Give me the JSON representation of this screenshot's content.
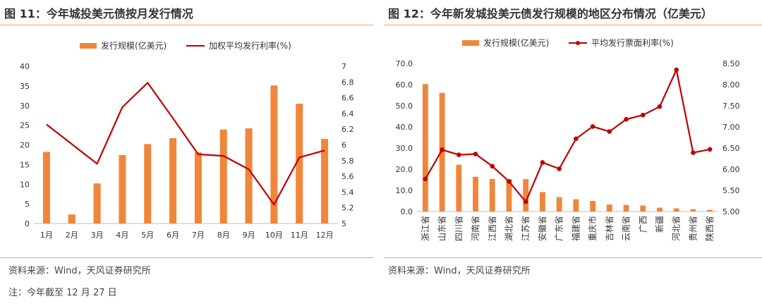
{
  "left": {
    "title": "图 11：今年城投美元债按月发行情况",
    "source": "资料来源：Wind，天风证券研究所",
    "note": "注：今年截至 12 月 27 日"
  },
  "right": {
    "title": "图 12：今年新发城投美元债发行规模的地区分布情况（亿美元）",
    "source": "资料来源：Wind，天风证券研究所"
  },
  "colors": {
    "bar": "#f0863a",
    "line": "#c00000",
    "rule": "#e8a66a"
  },
  "chart_data": [
    {
      "type": "bar",
      "categories": [
        "1月",
        "2月",
        "3月",
        "4月",
        "5月",
        "6月",
        "7月",
        "8月",
        "9月",
        "10月",
        "11月",
        "12月"
      ],
      "series": [
        {
          "name": "发行规模(亿美元)",
          "type": "bar",
          "axis": "left",
          "values": [
            18.2,
            2.3,
            10.2,
            17.4,
            20.2,
            21.7,
            18.1,
            23.9,
            24.2,
            35.1,
            30.5,
            21.5
          ]
        },
        {
          "name": "加权平均发行利率(%)",
          "type": "line",
          "axis": "right",
          "values": [
            6.26,
            6.01,
            5.76,
            6.48,
            6.79,
            6.34,
            5.88,
            5.86,
            5.69,
            5.24,
            5.84,
            5.93
          ]
        }
      ],
      "ylim_left": [
        0,
        40
      ],
      "yticks_left": [
        "0",
        "5",
        "10",
        "15",
        "20",
        "25",
        "30",
        "35",
        "40"
      ],
      "ylim_right": [
        5,
        7
      ],
      "yticks_right": [
        "5",
        "5.2",
        "5.4",
        "5.6",
        "5.8",
        "6",
        "6.2",
        "6.4",
        "6.6",
        "6.8",
        "7"
      ],
      "legend": "top",
      "grid": false
    },
    {
      "type": "bar",
      "categories": [
        "浙江省",
        "山东省",
        "四川省",
        "河南省",
        "江西省",
        "湖北省",
        "江苏省",
        "安徽省",
        "广东省",
        "福建省",
        "重庆市",
        "吉林省",
        "云南省",
        "广西",
        "新疆",
        "河北省",
        "贵州省",
        "陕西省"
      ],
      "series": [
        {
          "name": "发行规模(亿美元)",
          "type": "bar",
          "axis": "left",
          "values": [
            60.3,
            56.1,
            22.1,
            16.4,
            15.4,
            15.3,
            15.3,
            9.2,
            6.8,
            5.8,
            5.0,
            3.3,
            3.1,
            2.8,
            1.8,
            1.5,
            1.1,
            0.8
          ]
        },
        {
          "name": "平均发行票面利率(%)",
          "type": "line",
          "axis": "right",
          "values": [
            5.77,
            6.46,
            6.34,
            6.36,
            6.07,
            5.71,
            5.23,
            6.16,
            6.01,
            6.72,
            7.01,
            6.89,
            7.18,
            7.28,
            7.48,
            8.35,
            6.39,
            6.47
          ]
        }
      ],
      "ylim_left": [
        0,
        70
      ],
      "yticks_left": [
        "0.0",
        "10.0",
        "20.0",
        "30.0",
        "40.0",
        "50.0",
        "60.0",
        "70.0"
      ],
      "ylim_right": [
        5,
        8.5
      ],
      "yticks_right": [
        "5.00",
        "5.50",
        "6.00",
        "6.50",
        "7.00",
        "7.50",
        "8.00",
        "8.50"
      ],
      "legend": "top",
      "grid": false
    }
  ]
}
